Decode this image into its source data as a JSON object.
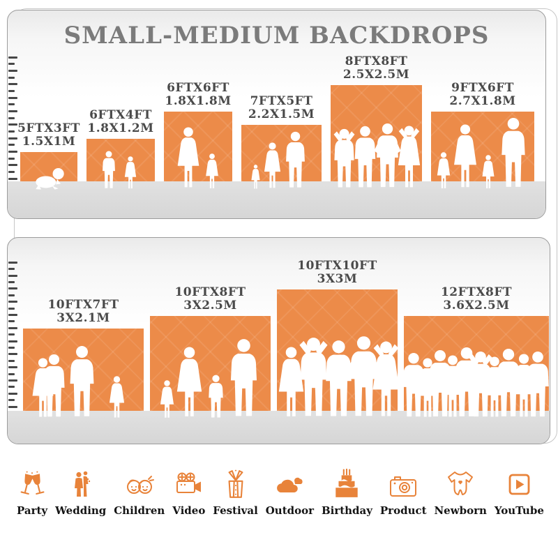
{
  "title": "SMALL-MEDIUM BACKDROPS",
  "colors": {
    "backdrop_orange": "#EC8B49",
    "icon_orange": "#E8833A",
    "title_gray": "#7B7B7B",
    "label_gray": "#4A4A4A",
    "floor_gray": "#D6D6D6"
  },
  "panels": [
    {
      "name": "small backdrops",
      "ruler": [
        1,
        2,
        3,
        4,
        5,
        6,
        7,
        8,
        9,
        10
      ],
      "backdrops": [
        {
          "size_ft": "5FTX3FT",
          "size_m": "1.5X1M",
          "width_ft": 5,
          "height_ft": 3,
          "figures": "crawling-baby"
        },
        {
          "size_ft": "6FTX4FT",
          "size_m": "1.8X1.2M",
          "width_ft": 6,
          "height_ft": 4,
          "figures": "two-children"
        },
        {
          "size_ft": "6FTX6FT",
          "size_m": "1.8X1.8M",
          "width_ft": 6,
          "height_ft": 6,
          "figures": "mother-and-child"
        },
        {
          "size_ft": "7FTX5FT",
          "size_m": "2.2X1.5M",
          "width_ft": 7,
          "height_ft": 5,
          "figures": "family-of-three"
        },
        {
          "size_ft": "8FTX8FT",
          "size_m": "2.5X2.5M",
          "width_ft": 8,
          "height_ft": 8,
          "figures": "four-adults"
        },
        {
          "size_ft": "9FTX6FT",
          "size_m": "2.7X1.8M",
          "width_ft": 9,
          "height_ft": 6,
          "figures": "family-of-four"
        }
      ]
    },
    {
      "name": "medium backdrops",
      "ruler": [
        1,
        2,
        3,
        4,
        5,
        6,
        7,
        8,
        9,
        10,
        11,
        12
      ],
      "backdrops": [
        {
          "size_ft": "10FTX7FT",
          "size_m": "3X2.1M",
          "width_ft": 10,
          "height_ft": 7,
          "figures": "family-of-four"
        },
        {
          "size_ft": "10FTX8FT",
          "size_m": "3X2.5M",
          "width_ft": 10,
          "height_ft": 8,
          "figures": "family-of-four"
        },
        {
          "size_ft": "10FTX10FT",
          "size_m": "3X3M",
          "width_ft": 10,
          "height_ft": 10,
          "figures": "five-adults"
        },
        {
          "size_ft": "12FTX8FT",
          "size_m": "3.6X2.5M",
          "width_ft": 12,
          "height_ft": 8,
          "figures": "group-of-adults"
        }
      ]
    }
  ],
  "categories": [
    {
      "label": "Party",
      "icon": "party-glasses-icon"
    },
    {
      "label": "Wedding",
      "icon": "wedding-couple-icon"
    },
    {
      "label": "Children",
      "icon": "children-faces-icon"
    },
    {
      "label": "Video",
      "icon": "video-camera-icon"
    },
    {
      "label": "Festival",
      "icon": "gift-box-icon"
    },
    {
      "label": "Outdoor",
      "icon": "cloud-icon"
    },
    {
      "label": "Birthday",
      "icon": "birthday-cake-icon"
    },
    {
      "label": "Product",
      "icon": "photo-camera-icon"
    },
    {
      "label": "Newborn",
      "icon": "baby-onesie-icon"
    },
    {
      "label": "YouTube",
      "icon": "youtube-play-icon"
    }
  ]
}
